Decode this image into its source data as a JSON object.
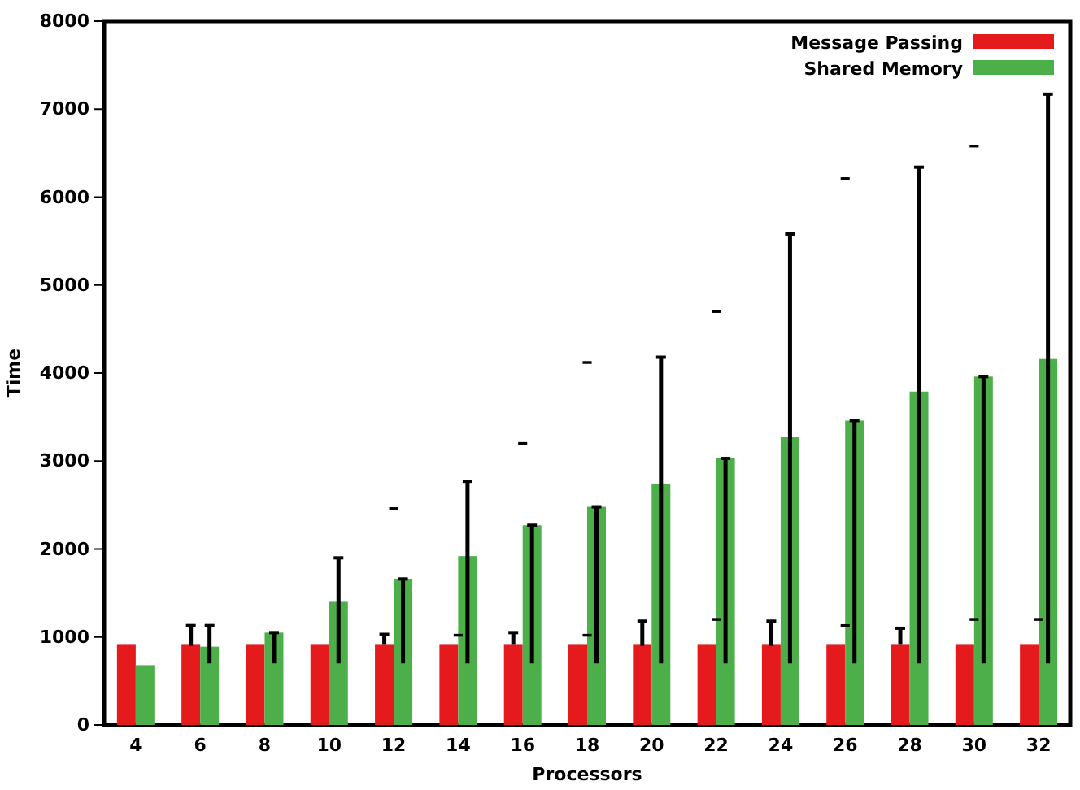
{
  "chart_data": {
    "type": "bar",
    "xlabel": "Processors",
    "ylabel": "Time",
    "categories": [
      "4",
      "6",
      "8",
      "10",
      "12",
      "14",
      "16",
      "18",
      "20",
      "22",
      "24",
      "26",
      "28",
      "30",
      "32"
    ],
    "series": [
      {
        "name": "Message Passing",
        "color": "#e41a1c",
        "values": [
          920,
          920,
          920,
          920,
          920,
          920,
          920,
          920,
          920,
          920,
          920,
          920,
          920,
          920,
          920
        ],
        "errors": [
          null,
          [
            900,
            1130
          ],
          null,
          null,
          [
            920,
            1030
          ],
          null,
          [
            920,
            1050
          ],
          null,
          [
            900,
            1180
          ],
          null,
          [
            900,
            1180
          ],
          null,
          [
            920,
            1100
          ],
          null,
          null
        ]
      },
      {
        "name": "Shared Memory",
        "color": "#4daf4a",
        "values": [
          680,
          890,
          1050,
          1400,
          1660,
          1920,
          2270,
          2480,
          2740,
          3030,
          3270,
          3460,
          3790,
          3960,
          4160
        ],
        "errors": [
          null,
          [
            700,
            1130
          ],
          [
            700,
            1050
          ],
          [
            700,
            1900
          ],
          [
            700,
            1660
          ],
          [
            700,
            2770
          ],
          [
            700,
            2270
          ],
          [
            700,
            2480
          ],
          [
            700,
            4180
          ],
          [
            700,
            3030
          ],
          [
            700,
            5580
          ],
          [
            700,
            3460
          ],
          [
            700,
            6340
          ],
          [
            700,
            3960
          ],
          [
            700,
            7170
          ]
        ]
      },
      {
        "type": "scatter",
        "color": "#000000",
        "marker": "square",
        "x": [
          "12",
          "16",
          "18",
          "22",
          "26",
          "30"
        ],
        "values": [
          2460,
          3200,
          4120,
          4700,
          6210,
          6580
        ]
      },
      {
        "type": "scatter",
        "color": "#000000",
        "marker": "square",
        "x": [
          "14",
          "18",
          "22",
          "26",
          "30",
          "32"
        ],
        "values": [
          1020,
          1020,
          1200,
          1130,
          1200,
          1200
        ]
      }
    ],
    "ylim": [
      0,
      8000
    ],
    "yticks": [
      0,
      1000,
      2000,
      3000,
      4000,
      5000,
      6000,
      7000,
      8000
    ],
    "grid": false,
    "legend": "top right"
  }
}
